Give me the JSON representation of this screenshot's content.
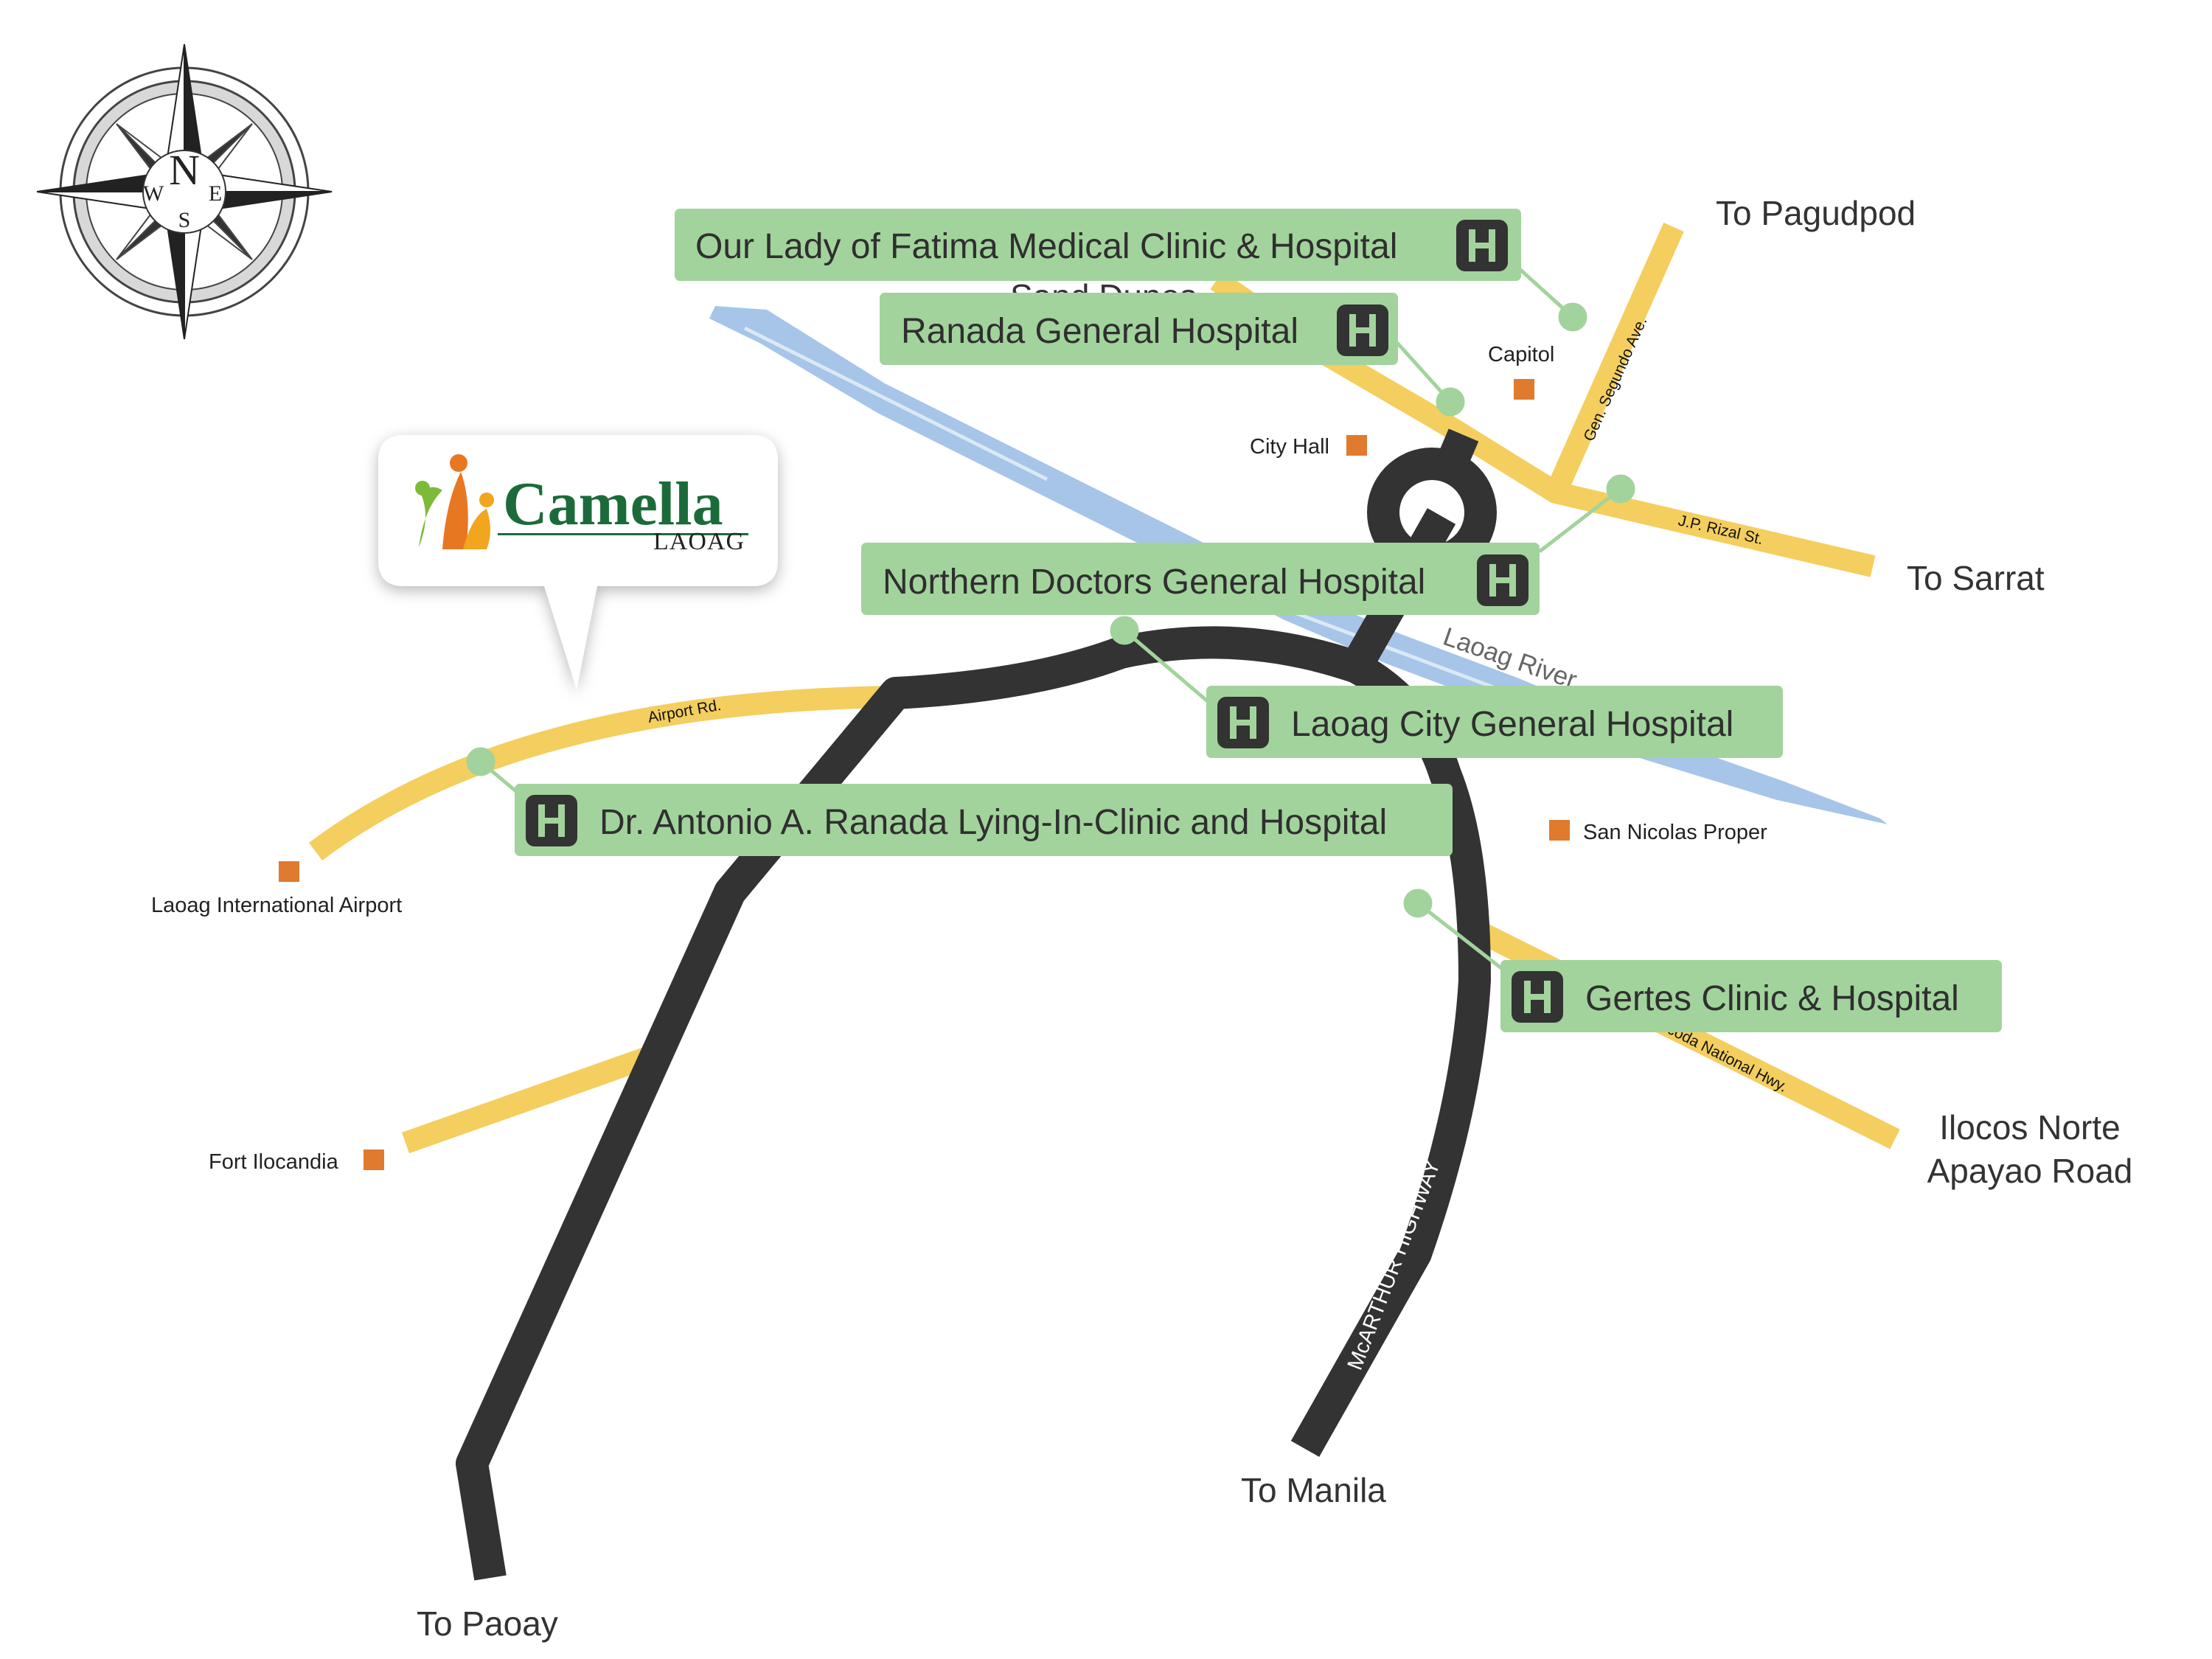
{
  "map": {
    "colors": {
      "highway": "#333333",
      "road": "#F4CE5E",
      "river": "#A6C5E8",
      "hospital_box": "#A2D39C",
      "hospital_icon": "#333333",
      "poi_marker": "#E07A2E",
      "brand_green": "#1B6B3A"
    },
    "compass": {
      "north": "N",
      "south": "S",
      "east": "E",
      "west": "W",
      "icon": "compass-rose-icon"
    },
    "brand": {
      "name": "Camella",
      "sub": "LAOAG",
      "logo": "family-figures-logo"
    },
    "hospitals": [
      {
        "label": "Our Lady of Fatima Medical Clinic & Hospital",
        "icon": "hospital-icon"
      },
      {
        "label": "Ranada General Hospital",
        "icon": "hospital-icon"
      },
      {
        "label": "Northern Doctors General Hospital",
        "icon": "hospital-icon"
      },
      {
        "label": "Laoag City General Hospital",
        "icon": "hospital-icon"
      },
      {
        "label": "Dr. Antonio A. Ranada Lying-In-Clinic and Hospital",
        "icon": "hospital-icon"
      },
      {
        "label": "Gertes Clinic & Hospital",
        "icon": "hospital-icon"
      }
    ],
    "destinations": {
      "pagudpod": "To Pagudpod",
      "sarrat": "To Sarrat",
      "manila": "To Manila",
      "paoay": "To Paoay",
      "apayao_line1": "Ilocos Norte",
      "apayao_line2": "Apayao Road"
    },
    "pois": {
      "capitol": "Capitol",
      "city_hall": "City Hall",
      "san_nicolas": "San Nicolas Proper",
      "airport": "Laoag International Airport",
      "fort": "Fort Ilocandia"
    },
    "roads": {
      "segundo": "Gen. Segundo Ave.",
      "rizal": "J.P. Rizal St.",
      "airport_rd": "Airport Rd.",
      "mcarthur": "McARTHUR HIGHWAY",
      "national_hwy": "Ilocoda National Hwy.",
      "sand_dunes": "Sand Dunes"
    },
    "river": "Laoag River"
  }
}
